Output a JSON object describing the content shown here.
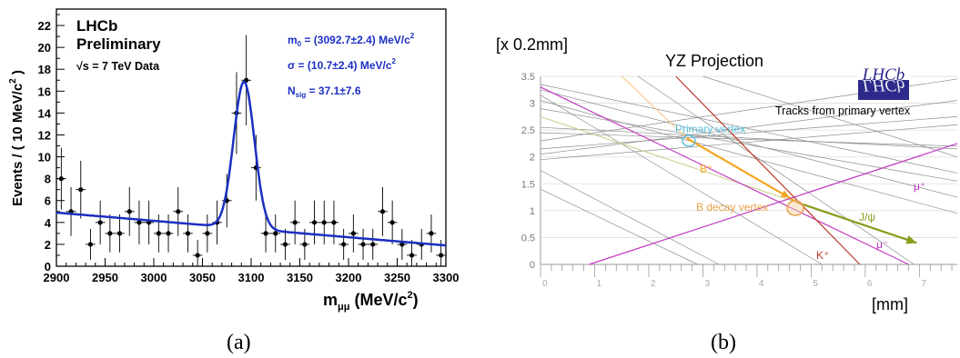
{
  "captions": {
    "a": "(a)",
    "b": "(b)"
  },
  "panel_a": {
    "experiment": "LHCb",
    "status": "Preliminary",
    "sqrt": "√s",
    "energy": " = 7 TeV Data",
    "params": [
      {
        "sym": "m",
        "sub": "0",
        "rest": " = (3092.7±2.4) MeV/c",
        "sup": "2"
      },
      {
        "sym": "σ",
        "sub": "",
        "rest": " = (10.7±2.4) MeV/c",
        "sup": "2"
      },
      {
        "sym": "N",
        "sub": "sig",
        "rest": " = 37.1±7.6",
        "sup": ""
      }
    ],
    "ylabel": {
      "pre": "Events / ( 10 MeV/c",
      "sup": "2",
      "post": " )"
    },
    "xlabel": {
      "pre": "m",
      "sub": "μμ",
      "post": " (MeV/c",
      "sup": "2",
      "end": ")"
    },
    "colors": {
      "fit": "#1c2fc2",
      "text": "#1c2fc2",
      "points": "#000000"
    }
  },
  "panel_b": {
    "unit_label": "[x 0.2mm]",
    "title": "YZ Projection",
    "logo": "LHCb",
    "logo_caption": "Tracks from primary vertex",
    "xlabel": "[mm]",
    "annotations": {
      "pv": "Primary vertex",
      "bplus": "B⁺",
      "bdecay": "B decay vertex",
      "jpsi": "J/ψ",
      "muplus": "μ⁺",
      "muminus": "μ⁻",
      "kplus": "K⁺"
    },
    "colors": {
      "pv": "#5bc0de",
      "b": "#f5a623",
      "bdecay": "#e8a24a",
      "jpsi": "#8a9a1a",
      "mu": "#c23bc2",
      "k": "#c0392b",
      "tracks": "#888888",
      "logo_bg": "#2e2a8c"
    }
  },
  "chart_data": [
    {
      "type": "scatter",
      "title": "",
      "xlabel": "m_μμ (MeV/c²)",
      "ylabel": "Events / ( 10 MeV/c² )",
      "xlim": [
        2900,
        3300
      ],
      "ylim": [
        0,
        23.5
      ],
      "x_ticks": [
        2900,
        2950,
        3000,
        3050,
        3100,
        3150,
        3200,
        3250,
        3300
      ],
      "y_ticks": [
        0,
        2,
        4,
        6,
        8,
        10,
        12,
        14,
        16,
        18,
        20,
        22
      ],
      "grid": false,
      "series": [
        {
          "x": [
            2905,
            2915,
            2925,
            2935,
            2945,
            2955,
            2965,
            2975,
            2985,
            2995,
            3005,
            3015,
            3025,
            3035,
            3045,
            3055,
            3065,
            3075,
            3085,
            3095,
            3105,
            3115,
            3125,
            3135,
            3145,
            3155,
            3165,
            3175,
            3185,
            3195,
            3205,
            3215,
            3225,
            3235,
            3245,
            3255,
            3265,
            3275,
            3285,
            3295
          ],
          "y": [
            8,
            5,
            7,
            2,
            4,
            3,
            3,
            5,
            4,
            4,
            3,
            3,
            5,
            3,
            1,
            3,
            4,
            6,
            14,
            17,
            9,
            3,
            3,
            2,
            4,
            2,
            4,
            4,
            4,
            2,
            3,
            2,
            2,
            5,
            4,
            2,
            1,
            2,
            3,
            1
          ]
        }
      ],
      "fit_curve": {
        "m0": 3092.7,
        "sigma": 10.7,
        "peak": 13.4,
        "bg_start": 4.9,
        "bg_end": 1.9
      }
    },
    {
      "type": "line",
      "title": "YZ Projection",
      "xlabel": "[mm]",
      "ylabel": "[x 0.2mm]",
      "xlim": [
        0,
        7.7
      ],
      "ylim": [
        0,
        3.5
      ],
      "x_ticks": [
        0,
        1,
        2,
        3,
        4,
        5,
        6,
        7
      ],
      "y_ticks": [
        0,
        0.5,
        1,
        1.5,
        2,
        2.5,
        3,
        3.5
      ],
      "grid": true,
      "series": [
        {
          "name": "B⁺",
          "x": [
            2.7,
            4.75
          ],
          "y": [
            2.35,
            1.15
          ]
        },
        {
          "name": "J/ψ",
          "x": [
            4.75,
            6.95
          ],
          "y": [
            1.15,
            0.4
          ]
        },
        {
          "name": "μ⁺",
          "x": [
            0.9,
            7.7
          ],
          "y": [
            0.0,
            2.25
          ]
        },
        {
          "name": "μ⁻",
          "x": [
            0.0,
            6.8
          ],
          "y": [
            3.3,
            0.0
          ]
        },
        {
          "name": "K⁺",
          "x": [
            2.5,
            5.9
          ],
          "y": [
            3.5,
            0.0
          ]
        }
      ]
    }
  ]
}
